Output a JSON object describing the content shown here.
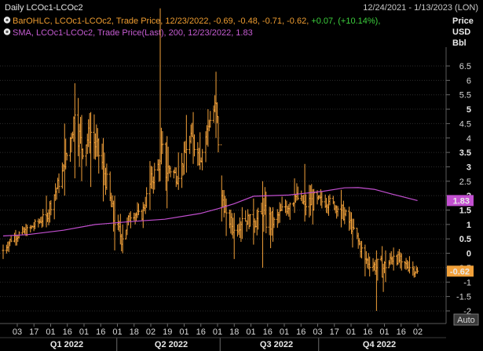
{
  "header": {
    "title": "Daily LCOc1-LCOc2",
    "date_range": "12/24/2021 - 1/13/2023 (LON)",
    "legend_line1_prefix": "BarOHLC, LCOc1-LCOc2, Trade Price, 12/23/2022, -0.69, -0.48, -0.71, -0.62, ",
    "legend_line1_change": "+0.07, (+10.14%),",
    "legend_line2": "SMA, LCOc1-LCOc2, Trade Price(Last), 200, 12/23/2022, 1.83",
    "eye_icon": "eye-icon"
  },
  "y_axis": {
    "heading": [
      "Price",
      "USD",
      "Bbl"
    ],
    "ticks": [
      "6.5",
      "6",
      "5.5",
      "5",
      "4.5",
      "4",
      "3.5",
      "3",
      "2.5",
      "2",
      "1.5",
      "1",
      "0.5",
      "0",
      "-0.5",
      "-1",
      "-1.5",
      "-2"
    ],
    "bold_ticks": [
      "5",
      "3.5",
      "3",
      "2",
      "1.5",
      "1",
      "0.5",
      "0"
    ],
    "sma_tag": "1.83",
    "last_tag": "-0.62",
    "auto_label": "Auto"
  },
  "x_axis": {
    "day_labels": [
      "03",
      "17",
      "01",
      "16",
      "01",
      "16",
      "01",
      "18",
      "02",
      "19",
      "01",
      "16",
      "01",
      "18",
      "01",
      "16",
      "01",
      "16",
      "03",
      "17",
      "01",
      "16",
      "01",
      "16",
      "02"
    ],
    "quarter_labels": [
      "Q1 2022",
      "Q2 2022",
      "Q3 2022",
      "Q4 2022"
    ]
  },
  "colors": {
    "background": "#000000",
    "bar": "#f2a13a",
    "sma": "#c24fd0",
    "legend_text": "#ee9c30",
    "legend_change": "#3ccf3c",
    "sma_text": "#c55cd2"
  },
  "chart_data": {
    "type": "line",
    "title": "Daily LCOc1-LCOc2",
    "ylabel": "Price USD Bbl",
    "ylim": [
      -2.3,
      6.9
    ],
    "x_range": [
      "2021-12-24",
      "2023-01-13"
    ],
    "series": [
      {
        "name": "BarOHLC, LCOc1-LCOc2, Trade Price",
        "style": "ohlc",
        "x": [
          "2021-12-24",
          "2022-01-01",
          "2022-01-15",
          "2022-01-31",
          "2022-02-16",
          "2022-02-25",
          "2022-03-03",
          "2022-03-11",
          "2022-03-22",
          "2022-04-01",
          "2022-04-08",
          "2022-04-16",
          "2022-04-24",
          "2022-05-02",
          "2022-05-11",
          "2022-05-18",
          "2022-05-27",
          "2022-06-03",
          "2022-06-09",
          "2022-06-15",
          "2022-06-22",
          "2022-06-29",
          "2022-07-04",
          "2022-07-08",
          "2022-07-15",
          "2022-07-22",
          "2022-08-01",
          "2022-08-09",
          "2022-08-18",
          "2022-08-28",
          "2022-09-06",
          "2022-09-15",
          "2022-09-25",
          "2022-10-06",
          "2022-10-17",
          "2022-10-27",
          "2022-11-07",
          "2022-11-17",
          "2022-11-25",
          "2022-12-02",
          "2022-12-09",
          "2022-12-16",
          "2022-12-23"
        ],
        "values": [
          0.1,
          0.55,
          0.8,
          1.3,
          3.0,
          4.8,
          3.6,
          4.2,
          3.0,
          1.0,
          0.5,
          1.5,
          1.2,
          2.4,
          3.2,
          3.0,
          2.6,
          3.6,
          4.0,
          3.2,
          4.4,
          5.2,
          2.0,
          1.4,
          0.8,
          1.2,
          1.1,
          1.3,
          1.0,
          1.6,
          2.0,
          1.7,
          1.8,
          1.8,
          1.5,
          0.9,
          -0.2,
          -0.5,
          -0.5,
          -0.1,
          -0.3,
          -0.5,
          -0.62
        ],
        "highs": [
          0.3,
          0.8,
          1.1,
          2.0,
          4.5,
          5.9,
          4.8,
          4.9,
          4.0,
          2.0,
          1.0,
          2.0,
          1.8,
          3.2,
          8.5,
          3.7,
          3.5,
          4.8,
          4.9,
          4.2,
          5.0,
          6.3,
          2.7,
          1.9,
          1.4,
          1.6,
          1.9,
          2.5,
          1.6,
          2.9,
          2.6,
          3.1,
          2.4,
          2.0,
          2.2,
          1.2,
          0.3,
          0.1,
          0.1,
          0.2,
          0.0,
          -0.1,
          -0.48
        ],
        "lows": [
          -0.2,
          0.3,
          0.6,
          0.9,
          2.0,
          2.6,
          2.5,
          2.3,
          1.8,
          0.1,
          0.0,
          1.0,
          0.8,
          1.5,
          2.5,
          2.5,
          2.2,
          2.8,
          3.1,
          2.9,
          3.7,
          4.0,
          1.1,
          0.6,
          -0.2,
          0.5,
          0.3,
          -0.5,
          0.4,
          0.7,
          1.4,
          1.1,
          1.3,
          1.3,
          0.9,
          0.2,
          -0.8,
          -2.0,
          -1.0,
          -0.6,
          -0.6,
          -0.7,
          -0.71
        ]
      },
      {
        "name": "SMA, LCOc1-LCOc2, Trade Price(Last), 200",
        "style": "line",
        "x": [
          "2021-12-24",
          "2022-01-15",
          "2022-02-15",
          "2022-03-15",
          "2022-04-15",
          "2022-05-15",
          "2022-06-15",
          "2022-07-01",
          "2022-07-15",
          "2022-08-01",
          "2022-09-01",
          "2022-10-01",
          "2022-10-20",
          "2022-11-01",
          "2022-11-15",
          "2022-12-01",
          "2022-12-23"
        ],
        "values": [
          0.6,
          0.65,
          0.8,
          1.0,
          1.1,
          1.18,
          1.38,
          1.55,
          1.72,
          1.98,
          2.02,
          2.15,
          2.27,
          2.28,
          2.22,
          2.05,
          1.83
        ]
      }
    ]
  }
}
